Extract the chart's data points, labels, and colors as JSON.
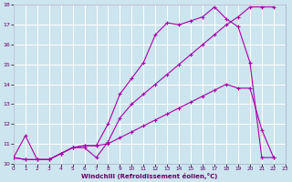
{
  "background_color": "#cce5ee",
  "grid_color": "#ffffff",
  "line_color": "#aa00aa",
  "xlabel": "Windchill (Refroidissement éolien,°C)",
  "xlim": [
    0,
    23
  ],
  "ylim": [
    10,
    18
  ],
  "line1_x": [
    0,
    1,
    2,
    3,
    4,
    5,
    6,
    7,
    8,
    9,
    10,
    11,
    12,
    13,
    14,
    15,
    16,
    17,
    18,
    19,
    20,
    21,
    22
  ],
  "line1_y": [
    10.3,
    10.2,
    10.2,
    10.2,
    10.5,
    10.8,
    10.8,
    10.3,
    11.1,
    12.3,
    13.0,
    13.5,
    14.0,
    14.5,
    15.0,
    15.5,
    16.0,
    16.5,
    17.0,
    17.4,
    17.9,
    17.9,
    17.9
  ],
  "line2_x": [
    0,
    1,
    2,
    3,
    4,
    5,
    6,
    7,
    8,
    9,
    10,
    11,
    12,
    13,
    14,
    15,
    16,
    17,
    18,
    19,
    20,
    21,
    22
  ],
  "line2_y": [
    10.3,
    10.2,
    10.2,
    10.2,
    10.5,
    10.8,
    10.9,
    10.9,
    12.0,
    13.5,
    14.3,
    15.1,
    16.5,
    17.1,
    17.0,
    17.2,
    17.4,
    17.9,
    17.3,
    16.9,
    15.1,
    10.3,
    10.3
  ],
  "line3_x": [
    0,
    1,
    2,
    3,
    4,
    5,
    6,
    7,
    8,
    9,
    10,
    11,
    12,
    13,
    14,
    15,
    16,
    17,
    18,
    19,
    20,
    21,
    22
  ],
  "line3_y": [
    10.3,
    11.4,
    10.2,
    10.2,
    10.5,
    10.8,
    10.9,
    10.9,
    11.0,
    11.3,
    11.6,
    11.9,
    12.2,
    12.5,
    12.8,
    13.1,
    13.4,
    13.7,
    14.0,
    13.8,
    13.8,
    11.7,
    10.3
  ]
}
